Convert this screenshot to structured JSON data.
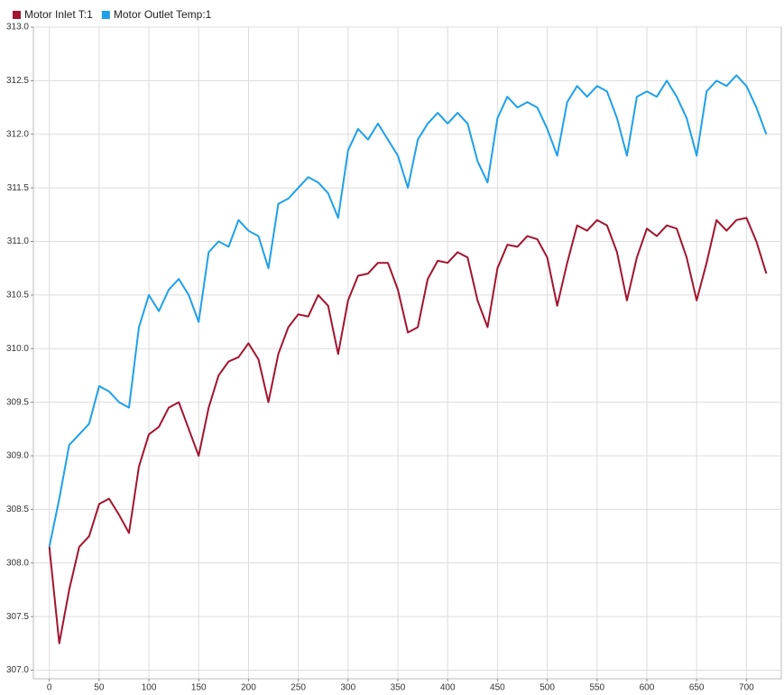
{
  "chart_data": {
    "type": "line",
    "x": [
      0,
      10,
      20,
      30,
      40,
      50,
      60,
      70,
      80,
      90,
      100,
      110,
      120,
      130,
      140,
      150,
      160,
      170,
      180,
      190,
      200,
      210,
      220,
      230,
      240,
      250,
      260,
      270,
      280,
      290,
      300,
      310,
      320,
      330,
      340,
      350,
      360,
      370,
      380,
      390,
      400,
      410,
      420,
      430,
      440,
      450,
      460,
      470,
      480,
      490,
      500,
      510,
      520,
      530,
      540,
      550,
      560,
      570,
      580,
      590,
      600,
      610,
      620,
      630,
      640,
      650,
      660,
      670,
      680,
      690,
      700,
      710,
      720
    ],
    "series": [
      {
        "name": "Motor Inlet T:1",
        "color": "#a2142f",
        "values": [
          308.15,
          307.25,
          307.75,
          308.15,
          308.25,
          308.55,
          308.6,
          308.45,
          308.28,
          308.9,
          309.2,
          309.27,
          309.45,
          309.5,
          309.25,
          309.0,
          309.45,
          309.75,
          309.88,
          309.92,
          310.05,
          309.9,
          309.5,
          309.95,
          310.2,
          310.32,
          310.3,
          310.5,
          310.4,
          309.95,
          310.45,
          310.68,
          310.7,
          310.8,
          310.8,
          310.55,
          310.15,
          310.2,
          310.65,
          310.82,
          310.8,
          310.9,
          310.85,
          310.45,
          310.2,
          310.75,
          310.97,
          310.95,
          311.05,
          311.02,
          310.85,
          310.4,
          310.8,
          311.15,
          311.1,
          311.2,
          311.15,
          310.9,
          310.45,
          310.85,
          311.12,
          311.05,
          311.15,
          311.12,
          310.85,
          310.45,
          310.8,
          311.2,
          311.1,
          311.2,
          311.22,
          311.0,
          310.7
        ]
      },
      {
        "name": "Motor Outlet Temp:1",
        "color": "#1ea0ea",
        "values": [
          308.15,
          308.6,
          309.1,
          309.2,
          309.3,
          309.65,
          309.6,
          309.5,
          309.45,
          310.2,
          310.5,
          310.35,
          310.55,
          310.65,
          310.5,
          310.25,
          310.9,
          311.0,
          310.95,
          311.2,
          311.1,
          311.05,
          310.75,
          311.35,
          311.4,
          311.5,
          311.6,
          311.55,
          311.45,
          311.22,
          311.85,
          312.05,
          311.95,
          312.1,
          311.95,
          311.8,
          311.5,
          311.95,
          312.1,
          312.2,
          312.1,
          312.2,
          312.1,
          311.75,
          311.55,
          312.15,
          312.35,
          312.25,
          312.3,
          312.25,
          312.05,
          311.8,
          312.3,
          312.45,
          312.35,
          312.45,
          312.4,
          312.15,
          311.8,
          312.35,
          312.4,
          312.35,
          312.5,
          312.35,
          312.15,
          311.8,
          312.4,
          312.5,
          312.45,
          312.55,
          312.45,
          312.25,
          312.0
        ]
      }
    ],
    "xlim": [
      -16,
      735
    ],
    "xticks": [
      0,
      50,
      100,
      150,
      200,
      250,
      300,
      350,
      400,
      450,
      500,
      550,
      600,
      650,
      700
    ],
    "ylim": [
      306.92,
      313
    ],
    "yticks": [
      {
        "value": 307,
        "label": "307.0"
      },
      307.5,
      {
        "value": 308,
        "label": "308.0"
      },
      308.5,
      {
        "value": 309,
        "label": "309.0"
      },
      309.5,
      {
        "value": 310,
        "label": "310.0"
      },
      310.5,
      {
        "value": 311,
        "label": "311.0"
      },
      311.5,
      {
        "value": 312,
        "label": "312.0"
      },
      312.5,
      {
        "value": 313,
        "label": "313.0"
      }
    ],
    "grid": true
  }
}
